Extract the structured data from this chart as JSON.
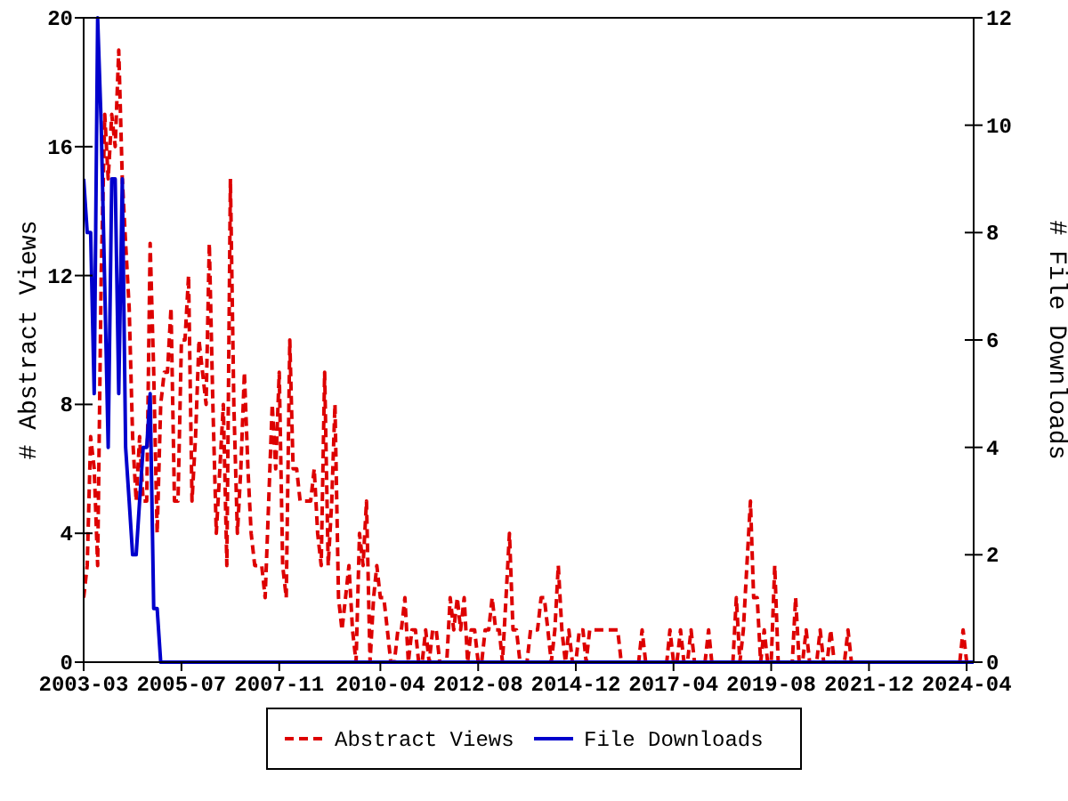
{
  "chart_data": {
    "type": "line",
    "xlabel": null,
    "ylabel": "# Abstract Views",
    "y2label": "# File Downloads",
    "x": [
      "2003-03",
      "2003-04",
      "2003-05",
      "2003-06",
      "2003-07",
      "2003-08",
      "2003-09",
      "2003-10",
      "2003-11",
      "2003-12",
      "2004-01",
      "2004-02",
      "2004-03",
      "2004-04",
      "2004-05",
      "2004-06",
      "2004-07",
      "2004-08",
      "2004-09",
      "2004-10",
      "2004-11",
      "2004-12",
      "2005-01",
      "2005-02",
      "2005-03",
      "2005-04",
      "2005-05",
      "2005-06",
      "2005-07",
      "2005-08",
      "2005-09",
      "2005-10",
      "2005-11",
      "2005-12",
      "2006-01",
      "2006-02",
      "2006-03",
      "2006-04",
      "2006-05",
      "2006-06",
      "2006-07",
      "2006-08",
      "2006-09",
      "2006-10",
      "2006-11",
      "2006-12",
      "2007-01",
      "2007-02",
      "2007-03",
      "2007-04",
      "2007-05",
      "2007-06",
      "2007-07",
      "2007-08",
      "2007-09",
      "2007-10",
      "2007-11",
      "2007-12",
      "2008-01",
      "2008-02",
      "2008-03",
      "2008-04",
      "2008-05",
      "2008-06",
      "2008-07",
      "2008-08",
      "2008-09",
      "2008-10",
      "2008-11",
      "2008-12",
      "2009-01",
      "2009-02",
      "2009-03",
      "2009-04",
      "2009-05",
      "2009-06",
      "2009-07",
      "2009-08",
      "2009-09",
      "2009-10",
      "2009-11",
      "2009-12",
      "2010-01",
      "2010-02",
      "2010-03",
      "2010-04",
      "2010-05",
      "2010-06",
      "2010-07",
      "2010-08",
      "2010-09",
      "2010-10",
      "2010-11",
      "2010-12",
      "2011-01",
      "2011-02",
      "2011-03",
      "2011-04",
      "2011-05",
      "2011-06",
      "2011-07",
      "2011-08",
      "2011-09",
      "2011-10",
      "2011-11",
      "2011-12",
      "2012-01",
      "2012-02",
      "2012-03",
      "2012-04",
      "2012-05",
      "2012-06",
      "2012-07",
      "2012-08",
      "2012-09",
      "2012-10",
      "2012-11",
      "2012-12",
      "2013-01",
      "2013-02",
      "2013-03",
      "2013-04",
      "2013-05",
      "2013-06",
      "2013-07",
      "2013-08",
      "2013-09",
      "2013-10",
      "2013-11",
      "2013-12",
      "2014-01",
      "2014-02",
      "2014-03",
      "2014-04",
      "2014-05",
      "2014-06",
      "2014-07",
      "2014-08",
      "2014-09",
      "2014-10",
      "2014-11",
      "2014-12",
      "2015-01",
      "2015-02",
      "2015-03",
      "2015-04",
      "2015-05",
      "2015-06",
      "2015-07",
      "2015-08",
      "2015-09",
      "2015-10",
      "2015-11",
      "2015-12",
      "2016-01",
      "2016-02",
      "2016-03",
      "2016-04",
      "2016-05",
      "2016-06",
      "2016-07",
      "2016-08",
      "2016-09",
      "2016-10",
      "2016-11",
      "2016-12",
      "2017-01",
      "2017-02",
      "2017-03",
      "2017-04",
      "2017-05",
      "2017-06",
      "2017-07",
      "2017-08",
      "2017-09",
      "2017-10",
      "2017-11",
      "2017-12",
      "2018-01",
      "2018-02",
      "2018-03",
      "2018-04",
      "2018-05",
      "2018-06",
      "2018-07",
      "2018-08",
      "2018-09",
      "2018-10",
      "2018-11",
      "2018-12",
      "2019-01",
      "2019-02",
      "2019-03",
      "2019-04",
      "2019-05",
      "2019-06",
      "2019-07",
      "2019-08",
      "2019-09",
      "2019-10",
      "2019-11",
      "2019-12",
      "2020-01",
      "2020-02",
      "2020-03",
      "2020-04",
      "2020-05",
      "2020-06",
      "2020-07",
      "2020-08",
      "2020-09",
      "2020-10",
      "2020-11",
      "2020-12",
      "2021-01",
      "2021-02",
      "2021-03",
      "2021-04",
      "2021-05",
      "2021-06",
      "2021-07",
      "2021-08",
      "2021-09",
      "2021-10",
      "2021-11",
      "2021-12",
      "2022-01",
      "2022-02",
      "2022-03",
      "2022-04",
      "2022-05",
      "2022-06",
      "2022-07",
      "2022-08",
      "2022-09",
      "2022-10",
      "2022-11",
      "2022-12",
      "2023-01",
      "2023-02",
      "2023-03",
      "2023-04",
      "2023-05",
      "2023-06",
      "2023-07",
      "2023-08",
      "2023-09",
      "2023-10",
      "2023-11",
      "2023-12",
      "2024-01",
      "2024-02",
      "2024-03",
      "2024-04",
      "2024-05",
      "2024-06"
    ],
    "series": [
      {
        "name": "Abstract Views",
        "color": "#dd0000",
        "line_style": "dashed",
        "values": [
          2,
          3,
          7,
          6,
          3,
          12,
          17,
          15,
          17,
          16,
          19,
          15,
          13,
          11,
          7,
          5,
          7,
          5,
          5,
          13,
          9,
          4,
          8,
          9,
          9,
          11,
          5,
          5,
          10,
          10,
          12,
          5,
          7,
          10,
          9,
          8,
          13,
          8,
          4,
          6,
          8,
          3,
          15,
          8,
          4,
          6,
          9,
          6,
          4,
          3,
          3,
          3,
          2,
          5,
          8,
          6,
          9,
          3,
          2,
          10,
          6,
          6,
          5,
          5,
          5,
          5,
          6,
          4,
          3,
          9,
          3,
          5,
          8,
          2,
          1,
          2,
          3,
          1,
          0,
          4,
          3,
          5,
          0,
          2,
          3,
          2,
          2,
          1,
          0,
          0,
          1,
          1,
          2,
          0,
          1,
          1,
          0,
          0,
          1,
          0,
          1,
          1,
          0,
          0,
          0,
          2,
          1,
          2,
          1,
          2,
          0,
          1,
          1,
          0,
          0,
          1,
          1,
          2,
          1,
          1,
          0,
          2,
          4,
          1,
          1,
          0,
          0,
          0,
          1,
          1,
          1,
          2,
          2,
          1,
          0,
          1,
          3,
          1,
          0,
          1,
          0,
          0,
          1,
          1,
          0,
          1,
          1,
          1,
          1,
          1,
          1,
          1,
          1,
          1,
          0,
          0,
          0,
          0,
          0,
          0,
          1,
          0,
          0,
          0,
          0,
          0,
          0,
          0,
          1,
          0,
          0,
          1,
          0,
          0,
          1,
          0,
          0,
          0,
          0,
          1,
          0,
          0,
          0,
          0,
          0,
          0,
          0,
          2,
          0,
          1,
          3,
          5,
          2,
          2,
          0,
          1,
          0,
          0,
          3,
          0,
          0,
          0,
          0,
          0,
          2,
          0,
          0,
          1,
          0,
          0,
          0,
          1,
          0,
          0,
          1,
          0,
          0,
          0,
          0,
          1,
          0,
          0,
          0,
          0,
          0,
          0,
          0,
          0,
          0,
          0,
          0,
          0,
          0,
          0,
          0,
          0,
          0,
          0,
          0,
          0,
          0,
          0,
          0,
          0,
          0,
          0,
          0,
          0,
          0,
          0,
          0,
          0,
          1,
          0,
          0,
          0
        ]
      },
      {
        "name": "File Downloads",
        "color": "#0000cc",
        "line_style": "solid",
        "axis": "y2",
        "values": [
          9,
          8,
          8,
          5,
          12,
          10,
          7,
          4,
          9,
          9,
          5,
          9,
          4,
          3,
          2,
          2,
          3,
          4,
          4,
          5,
          1,
          1,
          0,
          0,
          0,
          0,
          0,
          0,
          0,
          0,
          0,
          0,
          0,
          0,
          0,
          0,
          0,
          0,
          0,
          0,
          0,
          0,
          0,
          0,
          0,
          0,
          0,
          0,
          0,
          0,
          0,
          0,
          0,
          0,
          0,
          0,
          0,
          0,
          0,
          0,
          0,
          0,
          0,
          0,
          0,
          0,
          0,
          0,
          0,
          0,
          0,
          0,
          0,
          0,
          0,
          0,
          0,
          0,
          0,
          0,
          0,
          0,
          0,
          0,
          0,
          0,
          0,
          0,
          0,
          0,
          0,
          0,
          0,
          0,
          0,
          0,
          0,
          0,
          0,
          0,
          0,
          0,
          0,
          0,
          0,
          0,
          0,
          0,
          0,
          0,
          0,
          0,
          0,
          0,
          0,
          0,
          0,
          0,
          0,
          0,
          0,
          0,
          0,
          0,
          0,
          0,
          0,
          0,
          0,
          0,
          0,
          0,
          0,
          0,
          0,
          0,
          0,
          0,
          0,
          0,
          0,
          0,
          0,
          0,
          0,
          0,
          0,
          0,
          0,
          0,
          0,
          0,
          0,
          0,
          0,
          0,
          0,
          0,
          0,
          0,
          0,
          0,
          0,
          0,
          0,
          0,
          0,
          0,
          0,
          0,
          0,
          0,
          0,
          0,
          0,
          0,
          0,
          0,
          0,
          0,
          0,
          0,
          0,
          0,
          0,
          0,
          0,
          0,
          0,
          0,
          0,
          0,
          0,
          0,
          0,
          0,
          0,
          0,
          0,
          0,
          0,
          0,
          0,
          0,
          0,
          0,
          0,
          0,
          0,
          0,
          0,
          0,
          0,
          0,
          0,
          0,
          0,
          0,
          0,
          0,
          0,
          0,
          0,
          0,
          0,
          0,
          0,
          0,
          0,
          0,
          0,
          0,
          0,
          0,
          0,
          0,
          0,
          0,
          0,
          0,
          0,
          0,
          0,
          0,
          0,
          0,
          0,
          0,
          0,
          0,
          0,
          0,
          0,
          0,
          0,
          0
        ]
      }
    ],
    "xlim": [
      "2003-03",
      "2024-06"
    ],
    "xticks": [
      "2003-03",
      "2005-07",
      "2007-11",
      "2010-04",
      "2012-08",
      "2014-12",
      "2017-04",
      "2019-08",
      "2021-12",
      "2024-04"
    ],
    "ylim": [
      0,
      20
    ],
    "yticks": [
      0,
      4,
      8,
      12,
      16,
      20
    ],
    "y2lim": [
      0,
      12
    ],
    "y2ticks": [
      0,
      2,
      4,
      6,
      8,
      10,
      12
    ],
    "grid": false,
    "legend": "bottom",
    "marker": "none"
  }
}
